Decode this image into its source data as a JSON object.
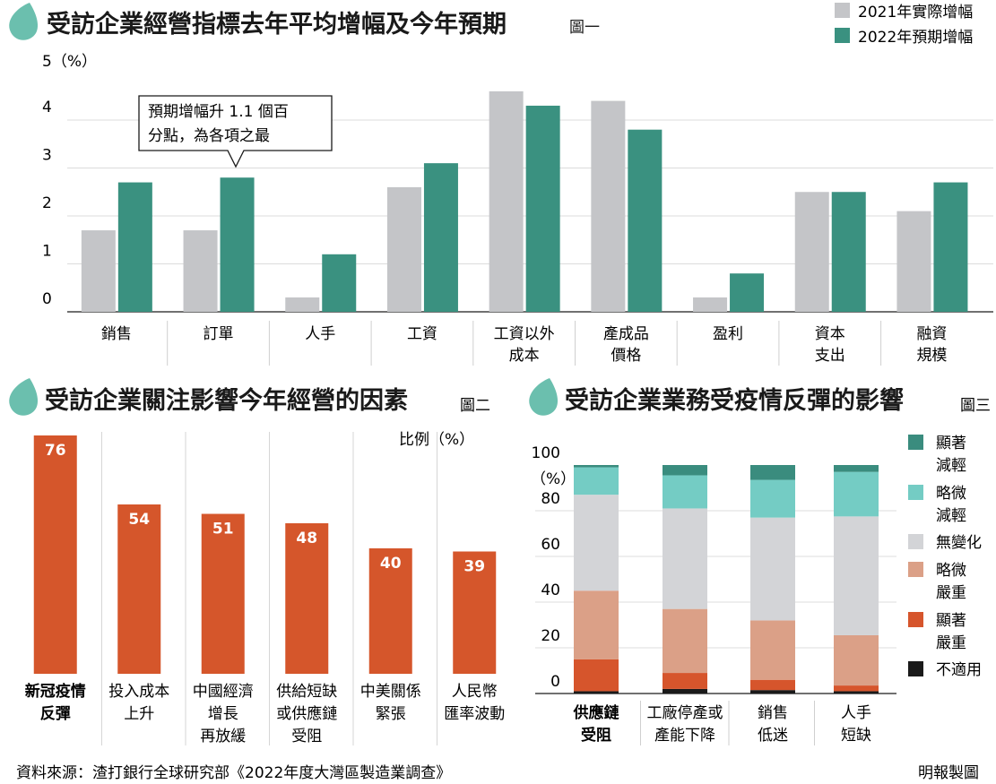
{
  "colors": {
    "gray": "#c4c5c8",
    "teal": "#3a9180",
    "orange": "#d5562b",
    "teal_dark": "#3a8c7e",
    "teal_light": "#74ccc4",
    "gray_light": "#d3d4d7",
    "salmon": "#dba087",
    "orange_red": "#d6552c",
    "black": "#1a1a1a"
  },
  "source_label": "資料來源：渣打銀行全球研究部《2022年度大灣區製造業調查》",
  "credit_label": "明報製圖",
  "chart_data": [
    {
      "id": "fig1",
      "type": "bar",
      "title": "受訪企業經營指標去年平均增幅及今年預期",
      "figure_label": "圖一",
      "ylabel": "5（%）",
      "ylim": [
        0,
        5
      ],
      "yticks": [
        0,
        1,
        2,
        3,
        4,
        5
      ],
      "categories": [
        "銷售",
        "訂單",
        "人手",
        "工資",
        "工資以外\n成本",
        "產成品\n價格",
        "盈利",
        "資本\n支出",
        "融資\n規模"
      ],
      "series": [
        {
          "name": "2021年實際增幅",
          "color": "#c4c5c8",
          "values": [
            1.7,
            1.7,
            0.3,
            2.6,
            4.6,
            4.4,
            0.3,
            2.5,
            2.1
          ]
        },
        {
          "name": "2022年預期增幅",
          "color": "#3a9180",
          "values": [
            2.7,
            2.8,
            1.2,
            3.1,
            4.3,
            3.8,
            0.8,
            2.5,
            2.7
          ]
        }
      ],
      "annotation": {
        "text": [
          "預期增幅升 1.1 個百",
          "分點，為各項之最"
        ],
        "category_index": 1
      }
    },
    {
      "id": "fig2",
      "type": "bar",
      "title": "受訪企業關注影響今年經營的因素",
      "figure_label": "圖二",
      "unit_label": "比例（%）",
      "ylim": [
        0,
        76
      ],
      "categories": [
        "新冠疫情\n反彈",
        "投入成本\n上升",
        "中國經濟\n增長\n再放緩",
        "供給短缺\n或供應鏈\n受阻",
        "中美關係\n緊張",
        "人民幣\n匯率波動"
      ],
      "values": [
        76,
        54,
        51,
        48,
        40,
        39
      ],
      "bold_category_index": 0
    },
    {
      "id": "fig3",
      "type": "bar",
      "stacked": true,
      "title": "受訪企業業務受疫情反彈的影響",
      "figure_label": "圖三",
      "ylabel": "（%）",
      "ylim": [
        0,
        100
      ],
      "yticks": [
        0,
        20,
        40,
        60,
        80,
        100
      ],
      "categories": [
        "供應鏈\n受阻",
        "工廠停產或\n產能下降",
        "銷售\n低迷",
        "人手\n短缺"
      ],
      "bold_category_index": 0,
      "series": [
        {
          "name": "不適用",
          "color": "#1a1a1a",
          "values": [
            1,
            2,
            1.5,
            1
          ]
        },
        {
          "name": "顯著\n嚴重",
          "color": "#d6552c",
          "values": [
            14,
            7,
            4.5,
            2.5
          ]
        },
        {
          "name": "略微\n嚴重",
          "color": "#dba087",
          "values": [
            30,
            28,
            26,
            22
          ]
        },
        {
          "name": "無變化",
          "color": "#d3d4d7",
          "values": [
            42,
            44,
            45,
            52
          ]
        },
        {
          "name": "略微\n減輕",
          "color": "#74ccc4",
          "values": [
            12,
            14.5,
            16.5,
            19.5
          ]
        },
        {
          "name": "顯著\n減輕",
          "color": "#3a8c7e",
          "values": [
            1,
            4.5,
            6.5,
            3
          ]
        }
      ],
      "legend_order": [
        5,
        4,
        3,
        2,
        1,
        0
      ]
    }
  ]
}
